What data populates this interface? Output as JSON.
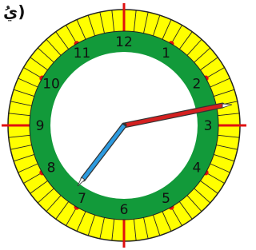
{
  "label": "يُ)",
  "clock": {
    "numbers": [
      "12",
      "1",
      "2",
      "3",
      "4",
      "5",
      "6",
      "7",
      "8",
      "9",
      "10",
      "11"
    ]
  }
}
